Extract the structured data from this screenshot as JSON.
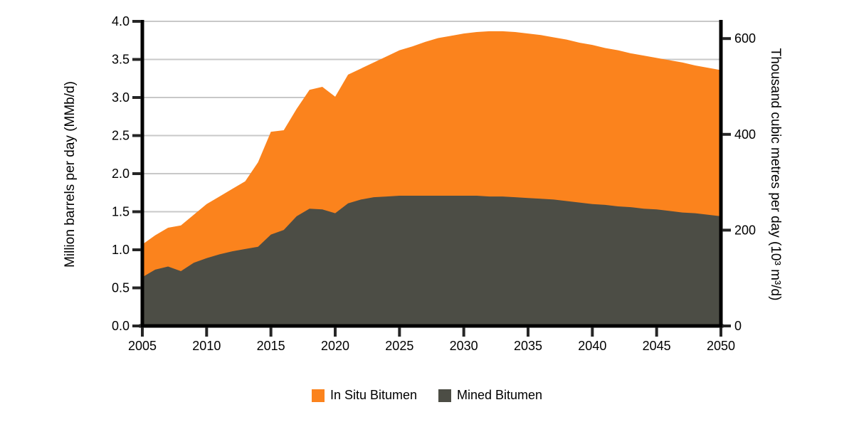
{
  "chart_data": {
    "type": "area",
    "stacked": true,
    "title": "",
    "xlabel": "",
    "ylabel_left": "Million barrels per day (MMb/d)",
    "ylabel_right": "Thousand cubic metres per day (10³ m³/d)",
    "x": [
      2005,
      2006,
      2007,
      2008,
      2009,
      2010,
      2011,
      2012,
      2013,
      2014,
      2015,
      2016,
      2017,
      2018,
      2019,
      2020,
      2021,
      2022,
      2023,
      2024,
      2025,
      2026,
      2027,
      2028,
      2029,
      2030,
      2031,
      2032,
      2033,
      2034,
      2035,
      2036,
      2037,
      2038,
      2039,
      2040,
      2041,
      2042,
      2043,
      2044,
      2045,
      2046,
      2047,
      2048,
      2049,
      2050
    ],
    "series": [
      {
        "name": "In Situ Bitumen",
        "color": "#FB831D",
        "values": [
          0.43,
          0.45,
          0.51,
          0.6,
          0.63,
          0.71,
          0.76,
          0.82,
          0.89,
          1.11,
          1.35,
          1.31,
          1.41,
          1.56,
          1.61,
          1.53,
          1.69,
          1.72,
          1.77,
          1.84,
          1.91,
          1.96,
          2.02,
          2.07,
          2.1,
          2.13,
          2.15,
          2.17,
          2.17,
          2.17,
          2.16,
          2.15,
          2.13,
          2.12,
          2.1,
          2.09,
          2.06,
          2.05,
          2.02,
          2.01,
          1.99,
          1.98,
          1.97,
          1.94,
          1.93,
          1.92
        ]
      },
      {
        "name": "Mined Bitumen",
        "color": "#4C4D45",
        "values": [
          0.64,
          0.74,
          0.78,
          0.72,
          0.83,
          0.89,
          0.94,
          0.98,
          1.01,
          1.04,
          1.2,
          1.26,
          1.44,
          1.54,
          1.53,
          1.48,
          1.61,
          1.66,
          1.69,
          1.7,
          1.71,
          1.71,
          1.71,
          1.71,
          1.71,
          1.71,
          1.71,
          1.7,
          1.7,
          1.69,
          1.68,
          1.67,
          1.66,
          1.64,
          1.62,
          1.6,
          1.59,
          1.57,
          1.56,
          1.54,
          1.53,
          1.51,
          1.49,
          1.48,
          1.46,
          1.44
        ]
      }
    ],
    "xlim": [
      2005,
      2050
    ],
    "ylim_left": [
      0,
      4.0
    ],
    "y_left_ticks": [
      0.0,
      0.5,
      1.0,
      1.5,
      2.0,
      2.5,
      3.0,
      3.5,
      4.0
    ],
    "y_right_ticks": [
      0,
      200,
      400,
      600
    ],
    "x_ticks": [
      2005,
      2010,
      2015,
      2020,
      2025,
      2030,
      2035,
      2040,
      2045,
      2050
    ],
    "right_to_left_factor": 0.00629,
    "grid": true,
    "gridline_color": "#C8C8C8",
    "axis_color": "#000000",
    "tick_color": "#262626",
    "legend_position": "bottom"
  }
}
